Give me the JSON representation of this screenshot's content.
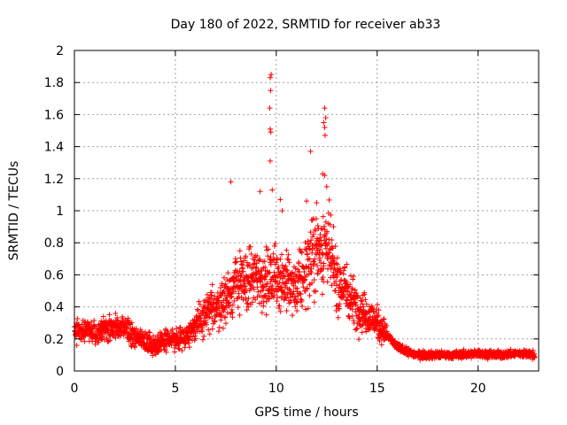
{
  "chart_data": {
    "type": "scatter",
    "title": "Day 180 of 2022, SRMTID for receiver ab33",
    "xlabel": "GPS time / hours",
    "ylabel": "SRMTID / TECUs",
    "xlim": [
      0,
      23
    ],
    "ylim": [
      0,
      2
    ],
    "xticks": [
      0,
      5,
      10,
      15,
      20
    ],
    "xtick_labels": [
      "0",
      "5",
      "10",
      "15",
      "20"
    ],
    "yticks": [
      0,
      0.2,
      0.4,
      0.6,
      0.8,
      1,
      1.2,
      1.4,
      1.6,
      1.8,
      2
    ],
    "ytick_labels": [
      "0",
      "0.2",
      "0.4",
      "0.6",
      "0.8",
      "1",
      "1.2",
      "1.4",
      "1.6",
      "1.8",
      "2"
    ],
    "grid": true,
    "marker": "plus",
    "color": "#ff0000",
    "series": [
      {
        "name": "SRMTID",
        "profile": [
          {
            "x": 0.0,
            "y": 0.25
          },
          {
            "x": 0.5,
            "y": 0.26
          },
          {
            "x": 1.0,
            "y": 0.24
          },
          {
            "x": 1.5,
            "y": 0.26
          },
          {
            "x": 2.0,
            "y": 0.27
          },
          {
            "x": 2.5,
            "y": 0.26
          },
          {
            "x": 3.0,
            "y": 0.22
          },
          {
            "x": 3.5,
            "y": 0.18
          },
          {
            "x": 4.0,
            "y": 0.16
          },
          {
            "x": 4.5,
            "y": 0.2
          },
          {
            "x": 5.0,
            "y": 0.19
          },
          {
            "x": 5.5,
            "y": 0.22
          },
          {
            "x": 6.0,
            "y": 0.28
          },
          {
            "x": 6.5,
            "y": 0.35
          },
          {
            "x": 7.0,
            "y": 0.4
          },
          {
            "x": 7.5,
            "y": 0.45
          },
          {
            "x": 8.0,
            "y": 0.55
          },
          {
            "x": 8.5,
            "y": 0.55
          },
          {
            "x": 9.0,
            "y": 0.6
          },
          {
            "x": 9.5,
            "y": 0.55
          },
          {
            "x": 10.0,
            "y": 0.6
          },
          {
            "x": 10.5,
            "y": 0.55
          },
          {
            "x": 11.0,
            "y": 0.5
          },
          {
            "x": 11.5,
            "y": 0.65
          },
          {
            "x": 12.0,
            "y": 0.75
          },
          {
            "x": 12.5,
            "y": 0.8
          },
          {
            "x": 13.0,
            "y": 0.55
          },
          {
            "x": 13.5,
            "y": 0.5
          },
          {
            "x": 14.0,
            "y": 0.4
          },
          {
            "x": 14.5,
            "y": 0.35
          },
          {
            "x": 15.0,
            "y": 0.3
          },
          {
            "x": 15.5,
            "y": 0.22
          },
          {
            "x": 16.0,
            "y": 0.15
          },
          {
            "x": 16.5,
            "y": 0.12
          },
          {
            "x": 17.0,
            "y": 0.1
          },
          {
            "x": 18.0,
            "y": 0.1
          },
          {
            "x": 19.0,
            "y": 0.1
          },
          {
            "x": 20.0,
            "y": 0.11
          },
          {
            "x": 21.0,
            "y": 0.1
          },
          {
            "x": 22.0,
            "y": 0.11
          },
          {
            "x": 22.8,
            "y": 0.1
          }
        ],
        "x_range": [
          0.0,
          22.8
        ],
        "notable_points": [
          {
            "x": 9.75,
            "y": 1.85
          },
          {
            "x": 9.7,
            "y": 1.83
          },
          {
            "x": 9.72,
            "y": 1.75
          },
          {
            "x": 9.68,
            "y": 1.64
          },
          {
            "x": 9.7,
            "y": 1.51
          },
          {
            "x": 9.73,
            "y": 1.49
          },
          {
            "x": 9.7,
            "y": 1.31
          },
          {
            "x": 9.8,
            "y": 1.13
          },
          {
            "x": 12.4,
            "y": 1.64
          },
          {
            "x": 12.45,
            "y": 1.58
          },
          {
            "x": 12.35,
            "y": 1.55
          },
          {
            "x": 12.4,
            "y": 1.52
          },
          {
            "x": 12.42,
            "y": 1.47
          },
          {
            "x": 12.3,
            "y": 1.23
          },
          {
            "x": 12.4,
            "y": 1.22
          },
          {
            "x": 12.5,
            "y": 1.15
          },
          {
            "x": 11.7,
            "y": 1.37
          },
          {
            "x": 7.75,
            "y": 1.18
          },
          {
            "x": 9.2,
            "y": 1.12
          },
          {
            "x": 10.2,
            "y": 1.07
          },
          {
            "x": 10.3,
            "y": 1.0
          },
          {
            "x": 11.5,
            "y": 1.06
          },
          {
            "x": 12.0,
            "y": 1.05
          }
        ]
      }
    ]
  }
}
